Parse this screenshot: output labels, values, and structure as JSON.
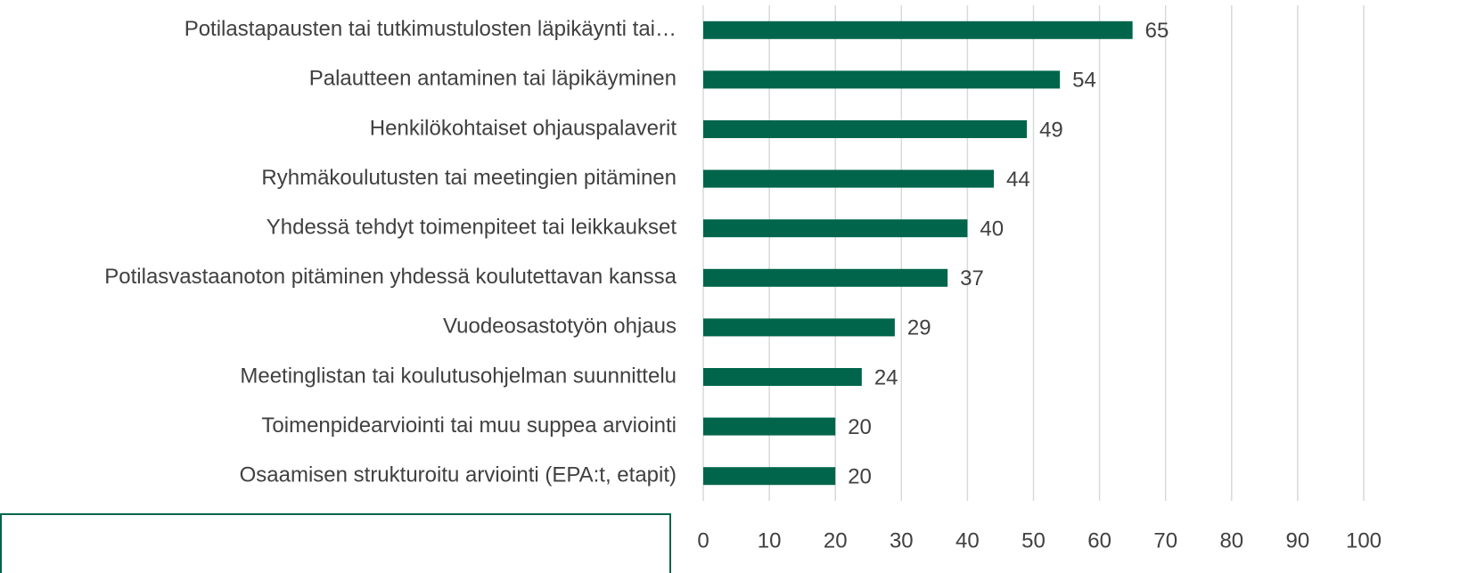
{
  "chart_data": {
    "type": "bar",
    "orientation": "horizontal",
    "categories": [
      "Potilastapausten tai tutkimustulosten läpikäynti tai…",
      "Palautteen antaminen tai läpikäyminen",
      "Henkilökohtaiset ohjauspalaverit",
      "Ryhmäkoulutusten tai meetingien pitäminen",
      "Yhdessä tehdyt toimenpiteet tai leikkaukset",
      "Potilasvastaanoton pitäminen yhdessä koulutettavan kanssa",
      "Vuodeosastotyön ohjaus",
      "Meetinglistan tai koulutusohjelman suunnittelu",
      "Toimenpidearviointi tai muu suppea arviointi",
      "Osaamisen strukturoitu arviointi (EPA:t, etapit)"
    ],
    "values": [
      65,
      54,
      49,
      44,
      40,
      37,
      29,
      24,
      20,
      20
    ],
    "color": "#00654b",
    "xlim": [
      0,
      100
    ],
    "xticks": [
      0,
      10,
      20,
      30,
      40,
      50,
      60,
      70,
      80,
      90,
      100
    ],
    "grid": true
  }
}
